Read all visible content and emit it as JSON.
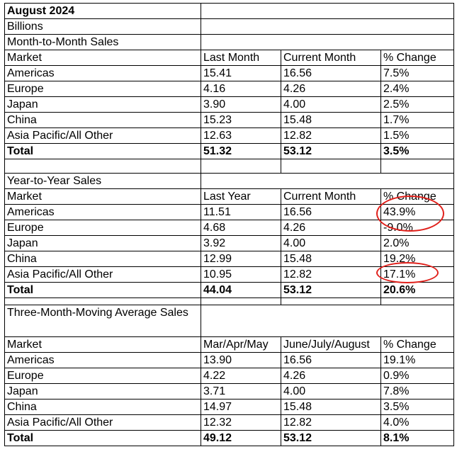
{
  "header": {
    "title": "August 2024",
    "unit": "Billions"
  },
  "month_to_month": {
    "section_title": "Month-to-Month Sales",
    "columns": [
      "Market",
      "Last Month",
      "Current Month",
      "% Change"
    ],
    "rows": [
      [
        "Americas",
        "15.41",
        "16.56",
        "7.5%"
      ],
      [
        "Europe",
        "4.16",
        "4.26",
        "2.4%"
      ],
      [
        "Japan",
        "3.90",
        "4.00",
        "2.5%"
      ],
      [
        "China",
        "15.23",
        "15.48",
        "1.7%"
      ],
      [
        "Asia Pacific/All Other",
        "12.63",
        "12.82",
        "1.5%"
      ]
    ],
    "total": [
      "Total",
      "51.32",
      "53.12",
      "3.5%"
    ]
  },
  "year_to_year": {
    "section_title": "Year-to-Year Sales",
    "columns": [
      "Market",
      "Last Year",
      "Current Month",
      "% Change"
    ],
    "rows": [
      [
        "Americas",
        "11.51",
        "16.56",
        "43.9%"
      ],
      [
        "Europe",
        "4.68",
        "4.26",
        "-9.0%"
      ],
      [
        "Japan",
        "3.92",
        "4.00",
        "2.0%"
      ],
      [
        "China",
        "12.99",
        "15.48",
        "19.2%"
      ],
      [
        "Asia Pacific/All Other",
        "10.95",
        "12.82",
        "17.1%"
      ]
    ],
    "total": [
      "Total",
      "44.04",
      "53.12",
      "20.6%"
    ]
  },
  "three_month": {
    "section_title": "Three-Month-Moving Average Sales",
    "columns": [
      "Market",
      "Mar/Apr/May",
      "June/July/August",
      "% Change"
    ],
    "rows": [
      [
        "Americas",
        "13.90",
        "16.56",
        "19.1%"
      ],
      [
        "Europe",
        "4.22",
        "4.26",
        "0.9%"
      ],
      [
        "Japan",
        "3.71",
        "4.00",
        "7.8%"
      ],
      [
        "China",
        "14.97",
        "15.48",
        "3.5%"
      ],
      [
        "Asia Pacific/All Other",
        "12.32",
        "12.82",
        "4.0%"
      ]
    ],
    "total": [
      "Total",
      "49.12",
      "53.12",
      "8.1%"
    ]
  },
  "annotation_color": "#e0201b"
}
